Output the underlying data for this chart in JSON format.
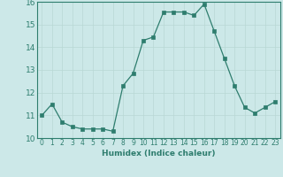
{
  "x": [
    0,
    1,
    2,
    3,
    4,
    5,
    6,
    7,
    8,
    9,
    10,
    11,
    12,
    13,
    14,
    15,
    16,
    17,
    18,
    19,
    20,
    21,
    22,
    23
  ],
  "y": [
    11.0,
    11.5,
    10.7,
    10.5,
    10.4,
    10.4,
    10.4,
    10.3,
    12.3,
    12.85,
    14.3,
    14.45,
    15.55,
    15.55,
    15.55,
    15.4,
    15.9,
    14.7,
    13.5,
    12.3,
    11.35,
    11.1,
    11.35,
    11.6
  ],
  "xlabel": "Humidex (Indice chaleur)",
  "ylim": [
    10.0,
    16.0
  ],
  "xlim_min": -0.5,
  "xlim_max": 23.5,
  "yticks": [
    10,
    11,
    12,
    13,
    14,
    15,
    16
  ],
  "xtick_labels": [
    "0",
    "1",
    "2",
    "3",
    "4",
    "5",
    "6",
    "7",
    "8",
    "9",
    "10",
    "11",
    "12",
    "13",
    "14",
    "15",
    "16",
    "17",
    "18",
    "19",
    "20",
    "21",
    "22",
    "23"
  ],
  "line_color": "#2e7d6e",
  "marker_color": "#2e7d6e",
  "bg_color": "#cce8e8",
  "grid_color": "#b8d8d4",
  "spine_color": "#2e7d6e",
  "xlabel_fontsize": 6.5,
  "tick_fontsize": 5.5,
  "ytick_fontsize": 6.5
}
